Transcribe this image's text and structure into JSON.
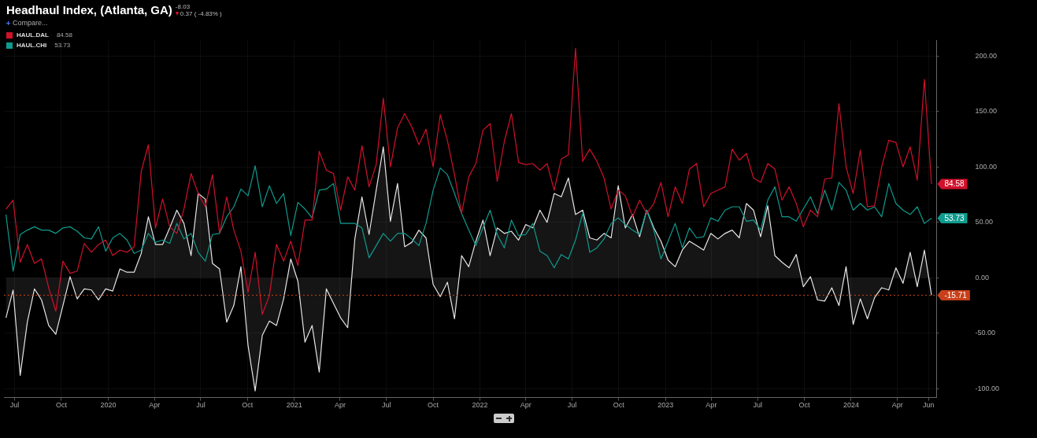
{
  "chart_data": {
    "type": "line",
    "title": "Headhaul Index, (Atlanta, GA)",
    "annotations": [
      "-8.03",
      "0.37 ( -4.83% )",
      "Compare...",
      "84.58",
      "53.73"
    ],
    "x": [
      "2019-06-14",
      "2019-06-28",
      "2019-07-12",
      "2019-07-26",
      "2019-08-09",
      "2019-08-23",
      "2019-09-06",
      "2019-09-20",
      "2019-10-04",
      "2019-10-18",
      "2019-11-01",
      "2019-11-15",
      "2019-11-29",
      "2019-12-13",
      "2019-12-27",
      "2020-01-10",
      "2020-01-24",
      "2020-02-07",
      "2020-02-21",
      "2020-03-06",
      "2020-03-20",
      "2020-04-03",
      "2020-04-17",
      "2020-05-01",
      "2020-05-15",
      "2020-05-29",
      "2020-06-12",
      "2020-06-26",
      "2020-07-10",
      "2020-07-24",
      "2020-08-07",
      "2020-08-21",
      "2020-09-04",
      "2020-09-18",
      "2020-10-02",
      "2020-10-16",
      "2020-10-30",
      "2020-11-13",
      "2020-11-27",
      "2020-12-11",
      "2020-12-25",
      "2021-01-08",
      "2021-01-22",
      "2021-02-05",
      "2021-02-19",
      "2021-03-05",
      "2021-03-19",
      "2021-04-02",
      "2021-04-16",
      "2021-04-30",
      "2021-05-14",
      "2021-05-28",
      "2021-06-11",
      "2021-06-25",
      "2021-07-09",
      "2021-07-23",
      "2021-08-06",
      "2021-08-20",
      "2021-09-03",
      "2021-09-17",
      "2021-10-01",
      "2021-10-15",
      "2021-10-29",
      "2021-11-12",
      "2021-11-26",
      "2021-12-10",
      "2021-12-24",
      "2022-01-07",
      "2022-01-21",
      "2022-02-04",
      "2022-02-18",
      "2022-03-04",
      "2022-03-18",
      "2022-04-01",
      "2022-04-15",
      "2022-04-29",
      "2022-05-13",
      "2022-05-27",
      "2022-06-10",
      "2022-06-24",
      "2022-07-08",
      "2022-07-22",
      "2022-08-05",
      "2022-08-19",
      "2022-09-02",
      "2022-09-16",
      "2022-09-30",
      "2022-10-14",
      "2022-10-28",
      "2022-11-11",
      "2022-11-25",
      "2022-12-09",
      "2022-12-23",
      "2023-01-06",
      "2023-01-20",
      "2023-02-03",
      "2023-02-17",
      "2023-03-03",
      "2023-03-17",
      "2023-03-31",
      "2023-04-14",
      "2023-04-28",
      "2023-05-12",
      "2023-05-26",
      "2023-06-09",
      "2023-06-23",
      "2023-07-07",
      "2023-07-21",
      "2023-08-04",
      "2023-08-18",
      "2023-09-01",
      "2023-09-15",
      "2023-09-29",
      "2023-10-13",
      "2023-10-27",
      "2023-11-10",
      "2023-11-24",
      "2023-12-08",
      "2023-12-22",
      "2024-01-05",
      "2024-01-19",
      "2024-02-02",
      "2024-02-16",
      "2024-03-01",
      "2024-03-15",
      "2024-03-29",
      "2024-04-12",
      "2024-04-26",
      "2024-05-10",
      "2024-05-24",
      "2024-06-07"
    ],
    "series": [
      {
        "name": "HAUL.DAL",
        "color": "#d0112b",
        "values": [
          62,
          70,
          14,
          30,
          13,
          17,
          -9,
          -30,
          15,
          4,
          6,
          31,
          23,
          30,
          34,
          20,
          25,
          23,
          28,
          96,
          120,
          45,
          71,
          46,
          40,
          62,
          94,
          76,
          64,
          93,
          40,
          73,
          43,
          24,
          -13,
          23,
          -33,
          -16,
          30,
          15,
          33,
          11,
          52,
          52,
          114,
          97,
          94,
          61,
          91,
          79,
          119,
          82,
          102,
          162,
          100,
          135,
          148,
          136,
          120,
          134,
          100,
          147,
          124,
          93,
          58,
          91,
          103,
          133,
          139,
          87,
          123,
          148,
          104,
          102,
          103,
          97,
          103,
          79,
          107,
          111,
          207,
          105,
          116,
          105,
          90,
          62,
          79,
          74,
          55,
          70,
          58,
          67,
          86,
          55,
          82,
          67,
          98,
          103,
          64,
          76,
          79,
          82,
          116,
          106,
          112,
          90,
          86,
          103,
          98,
          70,
          82,
          67,
          46,
          61,
          55,
          89,
          90,
          157,
          100,
          76,
          115,
          64,
          65,
          100,
          124,
          122,
          100,
          118,
          88,
          179,
          84.58
        ],
        "value_labels": [
          null,
          null,
          null,
          null,
          null,
          null,
          null,
          null,
          null,
          null,
          null,
          null,
          null,
          null,
          null,
          null,
          null,
          null,
          null,
          null,
          null,
          null,
          null,
          null,
          null,
          null,
          null,
          null,
          null,
          null,
          null,
          null,
          null,
          null,
          null,
          null,
          null,
          null,
          null,
          null,
          null,
          null,
          null,
          null,
          null,
          null,
          null,
          null,
          null,
          null,
          null,
          null,
          null,
          null,
          null,
          null,
          null,
          null,
          null,
          null,
          null,
          null,
          null,
          null,
          null,
          null,
          null,
          null,
          null,
          null,
          null,
          null,
          null,
          null,
          null,
          null,
          null,
          null,
          null,
          null,
          null,
          null,
          null,
          null,
          null,
          null,
          null,
          null,
          null,
          null,
          null,
          null,
          null,
          null,
          null,
          null,
          null,
          null,
          null,
          null,
          null,
          null,
          null,
          null,
          null,
          null,
          null,
          null,
          null,
          null,
          null,
          null,
          null,
          null,
          null,
          null,
          null,
          null,
          null,
          null,
          null,
          null,
          null,
          null,
          null,
          null,
          null,
          null,
          null,
          null,
          "84.58"
        ]
      },
      {
        "name": "HAUL.CHI",
        "color": "#0f9b8e",
        "values": [
          57,
          6,
          39,
          43,
          46,
          43,
          43,
          40,
          45,
          46,
          42,
          36,
          35,
          46,
          24,
          36,
          40,
          34,
          22,
          25,
          40,
          32,
          34,
          31,
          49,
          35,
          40,
          23,
          15,
          39,
          40,
          55,
          64,
          80,
          74,
          101,
          64,
          83,
          67,
          76,
          38,
          68,
          62,
          54,
          79,
          80,
          85,
          49,
          49,
          49,
          45,
          18,
          29,
          40,
          33,
          40,
          40,
          35,
          29,
          49,
          79,
          99,
          93,
          76,
          58,
          43,
          29,
          45,
          61,
          39,
          27,
          52,
          38,
          39,
          49,
          24,
          20,
          9,
          21,
          17,
          34,
          58,
          23,
          27,
          35,
          49,
          54,
          48,
          43,
          39,
          61,
          43,
          17,
          33,
          49,
          27,
          45,
          36,
          37,
          54,
          51,
          61,
          64,
          64,
          51,
          52,
          43,
          70,
          82,
          55,
          55,
          51,
          62,
          73,
          58,
          79,
          61,
          86,
          79,
          61,
          67,
          61,
          64,
          55,
          85,
          67,
          61,
          57,
          64,
          49,
          53.73
        ],
        "value_labels": [
          null,
          null,
          null,
          null,
          null,
          null,
          null,
          null,
          null,
          null,
          null,
          null,
          null,
          null,
          null,
          null,
          null,
          null,
          null,
          null,
          null,
          null,
          null,
          null,
          null,
          null,
          null,
          null,
          null,
          null,
          null,
          null,
          null,
          null,
          null,
          null,
          null,
          null,
          null,
          null,
          null,
          null,
          null,
          null,
          null,
          null,
          null,
          null,
          null,
          null,
          null,
          null,
          null,
          null,
          null,
          null,
          null,
          null,
          null,
          null,
          null,
          null,
          null,
          null,
          null,
          null,
          null,
          null,
          null,
          null,
          null,
          null,
          null,
          null,
          null,
          null,
          null,
          null,
          null,
          null,
          null,
          null,
          null,
          null,
          null,
          null,
          null,
          null,
          null,
          null,
          null,
          null,
          null,
          null,
          null,
          null,
          null,
          null,
          null,
          null,
          null,
          null,
          null,
          null,
          null,
          null,
          null,
          null,
          null,
          null,
          null,
          null,
          null,
          null,
          null,
          null,
          null,
          null,
          null,
          null,
          null,
          null,
          null,
          null,
          null,
          null,
          null,
          null,
          null,
          null,
          "53.73"
        ]
      },
      {
        "type": "area",
        "color": "#e6e6e6",
        "values": [
          -36,
          -11,
          -88,
          -40,
          -10,
          -20,
          -43,
          -51,
          -25,
          1,
          -19,
          -10,
          -11,
          -20,
          -10,
          -12,
          8,
          5,
          5,
          22,
          55,
          30,
          30,
          45,
          61,
          49,
          20,
          76,
          71,
          13,
          8,
          -40,
          -25,
          10,
          -61,
          -102,
          -52,
          -39,
          -43,
          -19,
          17,
          -3,
          -58,
          -43,
          -85,
          -10,
          -23,
          -36,
          -45,
          35,
          73,
          39,
          79,
          118,
          51,
          85,
          28,
          32,
          43,
          36,
          -6,
          -17,
          -4,
          -37,
          20,
          10,
          33,
          52,
          20,
          45,
          40,
          42,
          34,
          48,
          45,
          61,
          50,
          76,
          73,
          90,
          57,
          61,
          36,
          34,
          40,
          36,
          83,
          45,
          57,
          37,
          61,
          45,
          33,
          16,
          10,
          25,
          33,
          29,
          25,
          40,
          35,
          40,
          43,
          36,
          67,
          61,
          37,
          65,
          20,
          14,
          9,
          21,
          -8,
          1,
          -20,
          -21,
          -9,
          -25,
          10,
          -42,
          -19,
          -37,
          -18,
          -9,
          -11,
          9,
          -5,
          23,
          -8,
          25,
          -15.71
        ]
      }
    ],
    "xlim": [
      "2019-06-10",
      "2024-06-17"
    ],
    "xticks": [
      {
        "value": "2019-07-01",
        "label": "Jul"
      },
      {
        "value": "2019-10-01",
        "label": "Oct"
      },
      {
        "value": "2020-01-01",
        "label": "2020"
      },
      {
        "value": "2020-04-01",
        "label": "Apr"
      },
      {
        "value": "2020-07-01",
        "label": "Jul"
      },
      {
        "value": "2020-10-01",
        "label": "Oct"
      },
      {
        "value": "2021-01-01",
        "label": "2021"
      },
      {
        "value": "2021-04-01",
        "label": "Apr"
      },
      {
        "value": "2021-07-01",
        "label": "Jul"
      },
      {
        "value": "2021-10-01",
        "label": "Oct"
      },
      {
        "value": "2022-01-01",
        "label": "2022"
      },
      {
        "value": "2022-04-01",
        "label": "Apr"
      },
      {
        "value": "2022-07-01",
        "label": "Jul"
      },
      {
        "value": "2022-10-01",
        "label": "Oct"
      },
      {
        "value": "2023-01-01",
        "label": "2023"
      },
      {
        "value": "2023-04-01",
        "label": "Apr"
      },
      {
        "value": "2023-07-01",
        "label": "Jul"
      },
      {
        "value": "2023-10-01",
        "label": "Oct"
      },
      {
        "value": "2024-01-01",
        "label": "2024"
      },
      {
        "value": "2024-04-01",
        "label": "Apr"
      },
      {
        "value": "2024-06-01",
        "label": "Jun"
      }
    ],
    "ylim": [
      -108,
      214
    ],
    "yticks": [
      {
        "value": -100,
        "label": "-100.00"
      },
      {
        "value": -50,
        "label": "-50.00"
      },
      {
        "value": 0,
        "label": "0.00"
      },
      {
        "value": 50,
        "label": "50.00"
      },
      {
        "value": 100,
        "label": "100.00"
      },
      {
        "value": 150,
        "label": "150.00"
      },
      {
        "value": 200,
        "label": "200.00"
      }
    ],
    "ref_lines": [
      {
        "axis": "y",
        "value": -15.71,
        "label": "-15.71",
        "color": "#c8401a",
        "line_style": "dotted"
      }
    ],
    "grid": true,
    "legend": "top left",
    "marker": "none"
  }
}
